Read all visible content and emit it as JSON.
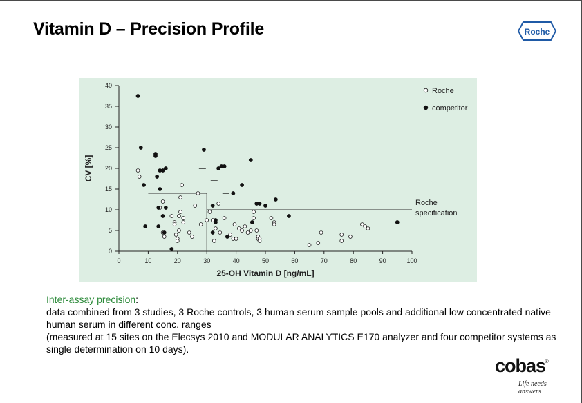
{
  "slide": {
    "title": "Vitamin D – Precision Profile",
    "logo_text": "Roche",
    "brand": {
      "name": "cobas",
      "registered": "®",
      "tagline": "Life needs answers"
    }
  },
  "description": {
    "lead": "Inter-assay precision",
    "lead_suffix": ":",
    "line1": "data combined from 3 studies, 3 Roche controls, 3 human serum sample pools and additional low concentrated native human serum in different conc. ranges",
    "line2": "(measured at 15 sites on the Elecsys 2010 and MODULAR ANALYTICS E170 analyzer and four competitor systems as single determination on 10 days)."
  },
  "colors": {
    "plot_bg": "#ddeee3",
    "logo_blue": "#1f5aa6",
    "lead_green": "#2c8a3a"
  },
  "chart_data": {
    "type": "scatter",
    "xlabel": "25-OH Vitamin D [ng/mL]",
    "ylabel": "CV [%]",
    "xlim": [
      0,
      100
    ],
    "ylim": [
      0,
      40
    ],
    "xticks": [
      0,
      10,
      20,
      30,
      40,
      50,
      60,
      70,
      80,
      90,
      100
    ],
    "yticks": [
      0,
      5,
      10,
      15,
      20,
      25,
      30,
      35,
      40
    ],
    "legend": {
      "position": "top-right",
      "entries": [
        {
          "label": "Roche",
          "marker": "open-circle"
        },
        {
          "label": "competitor",
          "marker": "filled-circle"
        }
      ]
    },
    "specification": {
      "label_line1": "Roche",
      "label_line2": "specification",
      "steps": [
        [
          10,
          14
        ],
        [
          30,
          14
        ],
        [
          30,
          10
        ],
        [
          100,
          10
        ]
      ],
      "drop_to_zero_at_x": 30
    },
    "series": [
      {
        "name": "Roche",
        "marker": "open",
        "points": [
          [
            6.5,
            19.5
          ],
          [
            7,
            18
          ],
          [
            14,
            10.5
          ],
          [
            15,
            12
          ],
          [
            15,
            4.5
          ],
          [
            15.5,
            3.5
          ],
          [
            18,
            8.5
          ],
          [
            19,
            7
          ],
          [
            19,
            6.5
          ],
          [
            19.5,
            4
          ],
          [
            20,
            3
          ],
          [
            20,
            2.5
          ],
          [
            20.5,
            5
          ],
          [
            20.5,
            8.5
          ],
          [
            21,
            9.5
          ],
          [
            21,
            13
          ],
          [
            21.5,
            16
          ],
          [
            22,
            8
          ],
          [
            22,
            7
          ],
          [
            24,
            4.5
          ],
          [
            25,
            3.5
          ],
          [
            26,
            11
          ],
          [
            27,
            14
          ],
          [
            28,
            6.5
          ],
          [
            30,
            7.5
          ],
          [
            31,
            9.5
          ],
          [
            32,
            7.5
          ],
          [
            32.5,
            2.5
          ],
          [
            33,
            5.5
          ],
          [
            34,
            11.5
          ],
          [
            34.5,
            4.5
          ],
          [
            36,
            8
          ],
          [
            38,
            4
          ],
          [
            39,
            3
          ],
          [
            39.5,
            6.5
          ],
          [
            40,
            3
          ],
          [
            41,
            5.5
          ],
          [
            42,
            5
          ],
          [
            43,
            6
          ],
          [
            44,
            4.5
          ],
          [
            45,
            5
          ],
          [
            45.5,
            7
          ],
          [
            46,
            8
          ],
          [
            46,
            9.5
          ],
          [
            47,
            5
          ],
          [
            47.5,
            3.5
          ],
          [
            47.5,
            3
          ],
          [
            48,
            3
          ],
          [
            48,
            2.5
          ],
          [
            52,
            8
          ],
          [
            53,
            7
          ],
          [
            53,
            6.5
          ],
          [
            65,
            1.5
          ],
          [
            68,
            2
          ],
          [
            69,
            4.5
          ],
          [
            76,
            4
          ],
          [
            76,
            2.5
          ],
          [
            79,
            3.5
          ],
          [
            83,
            6.5
          ],
          [
            84,
            6
          ],
          [
            85,
            5.5
          ]
        ]
      },
      {
        "name": "competitor",
        "marker": "filled",
        "points": [
          [
            6.5,
            37.5
          ],
          [
            7.5,
            25
          ],
          [
            8.5,
            16
          ],
          [
            9,
            6
          ],
          [
            12.5,
            23.5
          ],
          [
            12.5,
            23
          ],
          [
            13,
            18
          ],
          [
            13.5,
            10.5
          ],
          [
            13.5,
            6
          ],
          [
            14,
            15
          ],
          [
            14,
            19.5
          ],
          [
            15,
            19.5
          ],
          [
            15,
            8.5
          ],
          [
            15.5,
            4.5
          ],
          [
            16,
            20
          ],
          [
            16,
            10.5
          ],
          [
            18,
            0.5
          ],
          [
            29,
            24.5
          ],
          [
            32,
            11
          ],
          [
            32,
            4.5
          ],
          [
            33,
            7
          ],
          [
            33,
            7.5
          ],
          [
            34,
            20
          ],
          [
            35,
            20.5
          ],
          [
            36,
            20.5
          ],
          [
            37,
            3.5
          ],
          [
            39,
            14
          ],
          [
            42,
            16
          ],
          [
            45,
            22
          ],
          [
            45.5,
            7
          ],
          [
            47,
            11.5
          ],
          [
            48,
            11.5
          ],
          [
            50,
            11
          ],
          [
            53.5,
            12.5
          ],
          [
            58,
            8.5
          ],
          [
            95,
            7
          ]
        ]
      }
    ],
    "horizontal_dash_marks": [
      [
        28.5,
        20
      ],
      [
        32.5,
        17
      ],
      [
        36.5,
        14
      ]
    ]
  }
}
